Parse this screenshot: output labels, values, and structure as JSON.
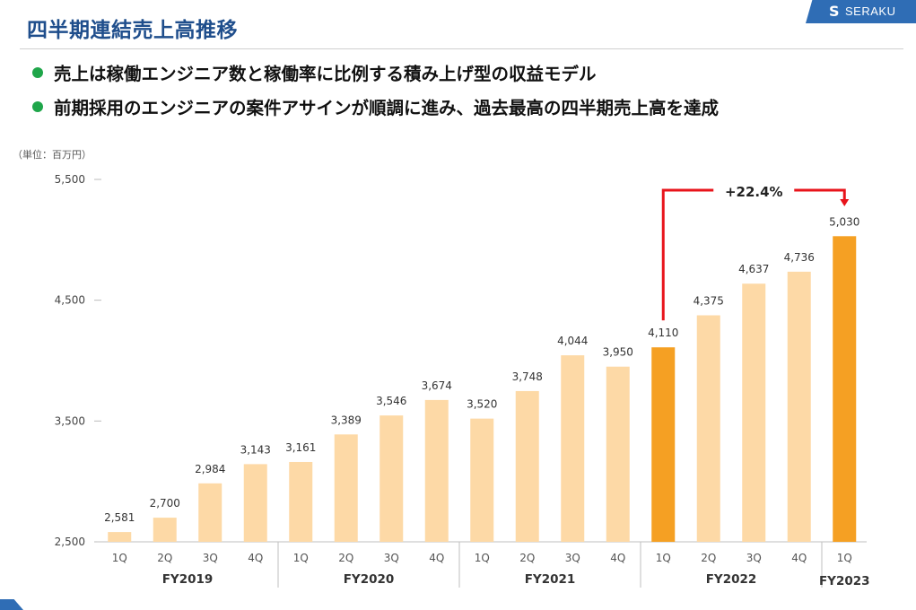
{
  "header": {
    "title": "四半期連結売上高推移",
    "logo_text": "SERAKU",
    "logo_mark": "S"
  },
  "bullets": [
    "売上は稼働エンジニア数と稼働率に比例する積み上げ型の収益モデル",
    "前期採用のエンジニアの案件アサインが順調に進み、過去最高の四半期売上高を達成"
  ],
  "colors": {
    "title": "#1f4e8c",
    "bullet_dot": "#1fa64a",
    "bar_normal": "#fdd9a6",
    "bar_highlight": "#f5a023",
    "annotation": "#e8141b",
    "logo_bg": "#2f6db5"
  },
  "chart_data": {
    "type": "bar",
    "unit_label": "（単位：百万円）",
    "ylim": [
      2500,
      5500
    ],
    "yticks": [
      2500,
      3500,
      4500,
      5500
    ],
    "ytick_labels": [
      "2,500",
      "3,500",
      "4,500",
      "5,500"
    ],
    "grid": false,
    "categories": [
      "1Q",
      "2Q",
      "3Q",
      "4Q",
      "1Q",
      "2Q",
      "3Q",
      "4Q",
      "1Q",
      "2Q",
      "3Q",
      "4Q",
      "1Q",
      "2Q",
      "3Q",
      "4Q",
      "1Q"
    ],
    "values": [
      2581,
      2700,
      2984,
      3143,
      3161,
      3389,
      3546,
      3674,
      3520,
      3748,
      4044,
      3950,
      4110,
      4375,
      4637,
      4736,
      5030
    ],
    "value_labels": [
      "2,581",
      "2,700",
      "2,984",
      "3,143",
      "3,161",
      "3,389",
      "3,546",
      "3,674",
      "3,520",
      "3,748",
      "4,044",
      "3,950",
      "4,110",
      "4,375",
      "4,637",
      "4,736",
      "5,030"
    ],
    "highlighted": [
      12,
      16
    ],
    "groups": [
      {
        "label": "FY2019",
        "start": 0,
        "end": 3
      },
      {
        "label": "FY2020",
        "start": 4,
        "end": 7
      },
      {
        "label": "FY2021",
        "start": 8,
        "end": 11
      },
      {
        "label": "FY2022",
        "start": 12,
        "end": 15
      },
      {
        "label": "FY2023",
        "start": 16,
        "end": 16
      }
    ],
    "annotation": {
      "text": "+22.4%",
      "from_index": 12,
      "to_index": 16
    }
  }
}
